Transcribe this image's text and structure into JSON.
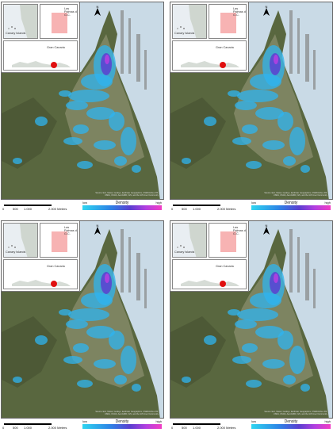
{
  "panels": [
    {
      "id": "top-left"
    },
    {
      "id": "top-right"
    },
    {
      "id": "bottom-left"
    },
    {
      "id": "bottom-right"
    }
  ],
  "inset": {
    "canary_islands_label": "Canary Islands",
    "las_palmas_label": "Las Palmas de G.C.",
    "gran_canaria_label": "Gran Canaria"
  },
  "north_arrow": {
    "letter": "N"
  },
  "scale": {
    "labels": [
      "0",
      "500",
      "1.000",
      "2.000 Meters"
    ]
  },
  "legend": {
    "title": "Density",
    "low": "low",
    "high": "high"
  },
  "attribution": "Source: Esri, Maxar, GeoEye, Earthstar Geographics, CNES/Airbus DS, USDA, USGS, AeroGRID, IGN, and the GIS User Community",
  "colors": {
    "sea": "#c9dae6",
    "land": "#5a6a45",
    "density_low": "#2fd6f0",
    "density_mid": "#5a3fd0",
    "density_high": "#f23ec4",
    "inset_highlight": "#f7b3b3",
    "gran_canaria_dot": "#e01010"
  }
}
